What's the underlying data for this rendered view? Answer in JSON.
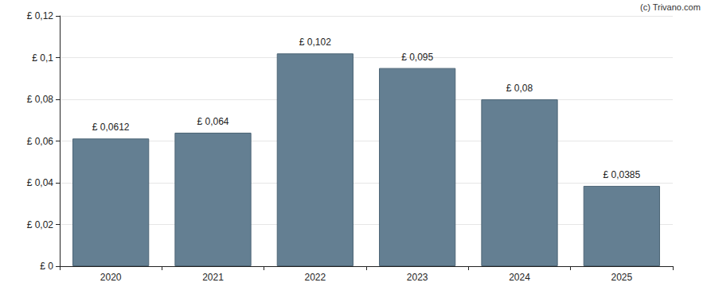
{
  "chart_data": {
    "type": "bar",
    "annotations": [
      "(c) Trivano.com"
    ],
    "categories": [
      "2020",
      "2021",
      "2022",
      "2023",
      "2024",
      "2025"
    ],
    "values": [
      0.0612,
      0.064,
      0.102,
      0.095,
      0.08,
      0.0385
    ],
    "value_labels": [
      "£ 0,0612",
      "£ 0,064",
      "£ 0,102",
      "£ 0,095",
      "£ 0,08",
      "£ 0,0385"
    ],
    "data_labels": true,
    "color": "#647f92",
    "ylim": [
      0,
      0.12
    ],
    "yticks": [
      {
        "value": 0,
        "label": "£ 0"
      },
      {
        "value": 0.02,
        "label": "£ 0,02"
      },
      {
        "value": 0.04,
        "label": "£ 0,04"
      },
      {
        "value": 0.06,
        "label": "£ 0,06"
      },
      {
        "value": 0.08,
        "label": "£ 0,08"
      },
      {
        "value": 0.1,
        "label": "£ 0,1"
      },
      {
        "value": 0.12,
        "label": "£ 0,12"
      }
    ],
    "grid": true
  }
}
